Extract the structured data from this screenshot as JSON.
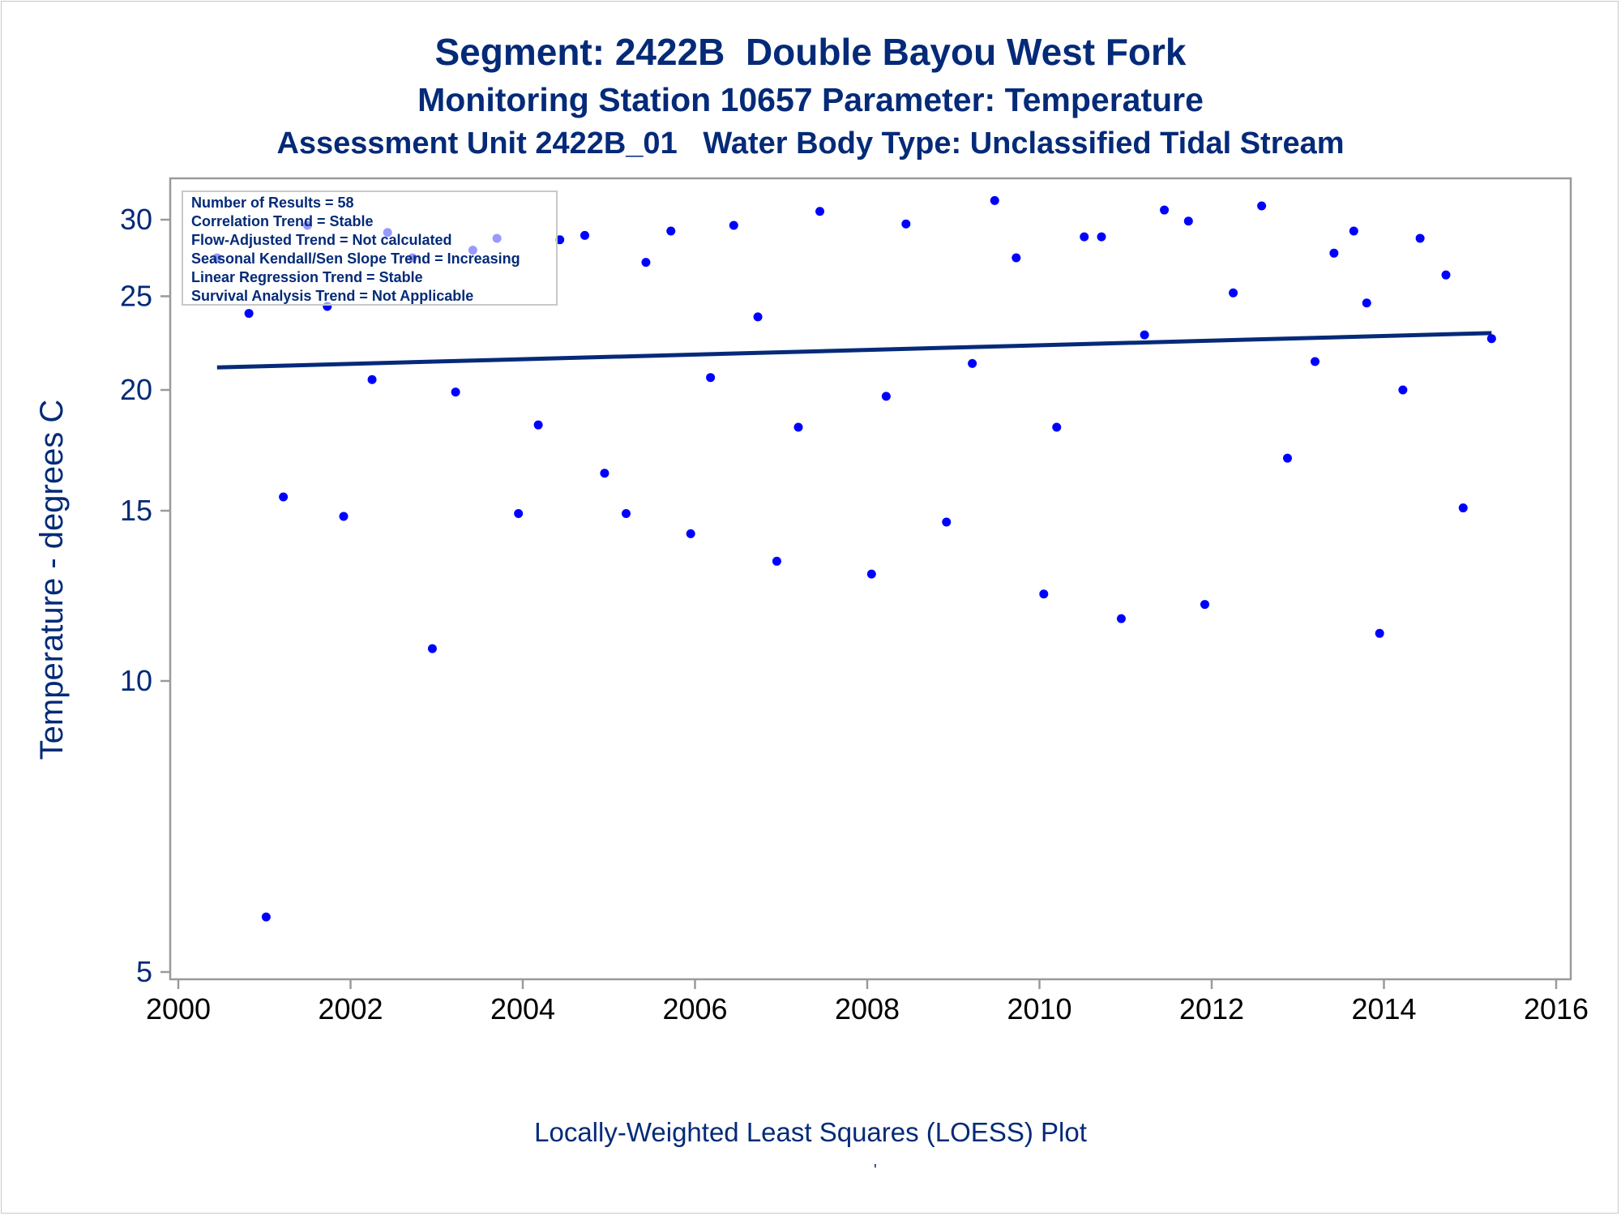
{
  "titles": {
    "line1": "Segment: 2422B  Double Bayou West Fork",
    "line2": "Monitoring Station 10657 Parameter: Temperature",
    "line3": "Assessment Unit 2422B_01   Water Body Type: Unclassified Tidal Stream"
  },
  "footnote": "Locally-Weighted Least Squares (LOESS) Plot",
  "footnote_mark": "'",
  "inset": [
    "Number of Results = 58",
    "Correlation Trend = Stable",
    "Flow-Adjusted Trend = Not calculated",
    "Seasonal Kendall/Sen Slope Trend = Increasing",
    "Linear Regression Trend = Stable",
    "Survival Analysis Trend = Not Applicable"
  ],
  "colors": {
    "text": "#042a78",
    "points": "#0000ff",
    "trend_line": "#042a78",
    "axis": "#9a9a9a"
  },
  "chart_data": {
    "type": "scatter",
    "ylabel": "Temperature - degrees C",
    "xlabel": "",
    "y_scale": "log",
    "xlim": [
      2000,
      2016
    ],
    "ylim": [
      4.8,
      33
    ],
    "x_ticks": [
      2000,
      2002,
      2004,
      2006,
      2008,
      2010,
      2012,
      2014,
      2016
    ],
    "y_ticks": [
      5,
      10,
      15,
      20,
      25,
      30
    ],
    "legend": "top-left inset text box",
    "series": [
      {
        "values": [
          [
            2000.45,
            27.4
          ],
          [
            2000.82,
            24.0
          ],
          [
            2001.02,
            5.7
          ],
          [
            2001.22,
            15.5
          ],
          [
            2001.5,
            29.6
          ],
          [
            2001.73,
            24.4
          ],
          [
            2001.92,
            14.8
          ],
          [
            2002.25,
            20.5
          ],
          [
            2002.43,
            29.1
          ],
          [
            2002.72,
            27.4
          ],
          [
            2002.95,
            10.8
          ],
          [
            2003.22,
            19.9
          ],
          [
            2003.42,
            27.9
          ],
          [
            2003.7,
            28.7
          ],
          [
            2003.95,
            14.9
          ],
          [
            2004.18,
            18.4
          ],
          [
            2004.43,
            28.6
          ],
          [
            2004.72,
            28.9
          ],
          [
            2004.95,
            16.4
          ],
          [
            2005.2,
            14.9
          ],
          [
            2005.43,
            27.1
          ],
          [
            2005.72,
            29.2
          ],
          [
            2005.95,
            14.2
          ],
          [
            2006.18,
            20.6
          ],
          [
            2006.45,
            29.6
          ],
          [
            2006.73,
            23.8
          ],
          [
            2006.95,
            13.3
          ],
          [
            2007.2,
            18.3
          ],
          [
            2007.45,
            30.6
          ],
          [
            2008.05,
            12.9
          ],
          [
            2008.22,
            19.7
          ],
          [
            2008.45,
            29.7
          ],
          [
            2008.92,
            14.6
          ],
          [
            2009.22,
            21.3
          ],
          [
            2009.48,
            31.4
          ],
          [
            2009.73,
            27.4
          ],
          [
            2010.05,
            12.3
          ],
          [
            2010.2,
            18.3
          ],
          [
            2010.52,
            28.8
          ],
          [
            2010.72,
            28.8
          ],
          [
            2010.95,
            11.6
          ],
          [
            2011.22,
            22.8
          ],
          [
            2011.45,
            30.7
          ],
          [
            2011.73,
            29.9
          ],
          [
            2011.92,
            12.0
          ],
          [
            2012.25,
            25.2
          ],
          [
            2012.58,
            31.0
          ],
          [
            2012.88,
            17.0
          ],
          [
            2013.2,
            21.4
          ],
          [
            2013.42,
            27.7
          ],
          [
            2013.65,
            29.2
          ],
          [
            2013.8,
            24.6
          ],
          [
            2013.95,
            11.2
          ],
          [
            2014.22,
            20.0
          ],
          [
            2014.42,
            28.7
          ],
          [
            2014.72,
            26.3
          ],
          [
            2014.92,
            15.1
          ],
          [
            2015.25,
            22.6
          ]
        ]
      }
    ],
    "trend_line": {
      "x": [
        2000.45,
        2015.25
      ],
      "y": [
        21.1,
        22.9
      ]
    }
  }
}
